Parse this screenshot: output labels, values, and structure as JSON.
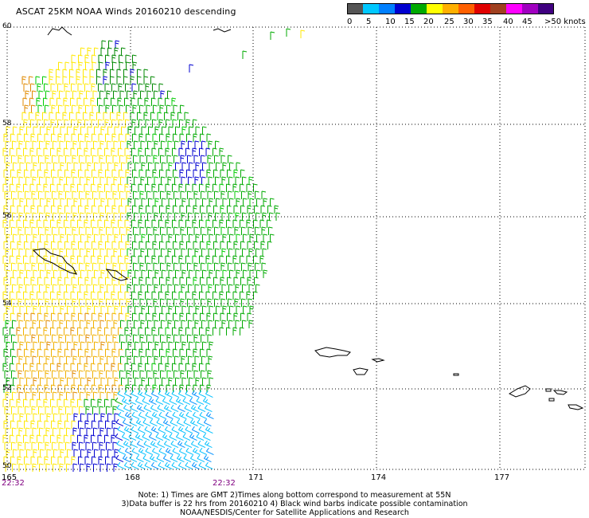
{
  "title": "ASCAT 25KM NOAA Winds 20160210 descending",
  "colorbar": {
    "colors": [
      "#555555",
      "#00c8ff",
      "#0080ff",
      "#0000d0",
      "#00aa00",
      "#ffff00",
      "#ffb000",
      "#ff6000",
      "#e00000",
      "#a04020",
      "#ff00ff",
      "#a000c0",
      "#400080"
    ],
    "labels": [
      "0",
      "5",
      "10",
      "15",
      "20",
      "25",
      "30",
      "35",
      "40",
      "45",
      ">50 knots"
    ]
  },
  "axes": {
    "lat_labels": [
      "60",
      "58",
      "56",
      "54",
      "52",
      "50"
    ],
    "lon_labels": [
      "165",
      "168",
      "171",
      "174",
      "177"
    ],
    "time_labels": [
      "22:32",
      "22:32"
    ]
  },
  "notes": {
    "line1": "Note: 1) Times are GMT 2)Times along bottom correspond to measurement at 55N",
    "line2": "3)Data buffer is 22 hrs from 20160210 4) Black wind barbs indicate possible contamination",
    "line3": "NOAA/NESDIS/Center for Satellite Applications and Research"
  }
}
